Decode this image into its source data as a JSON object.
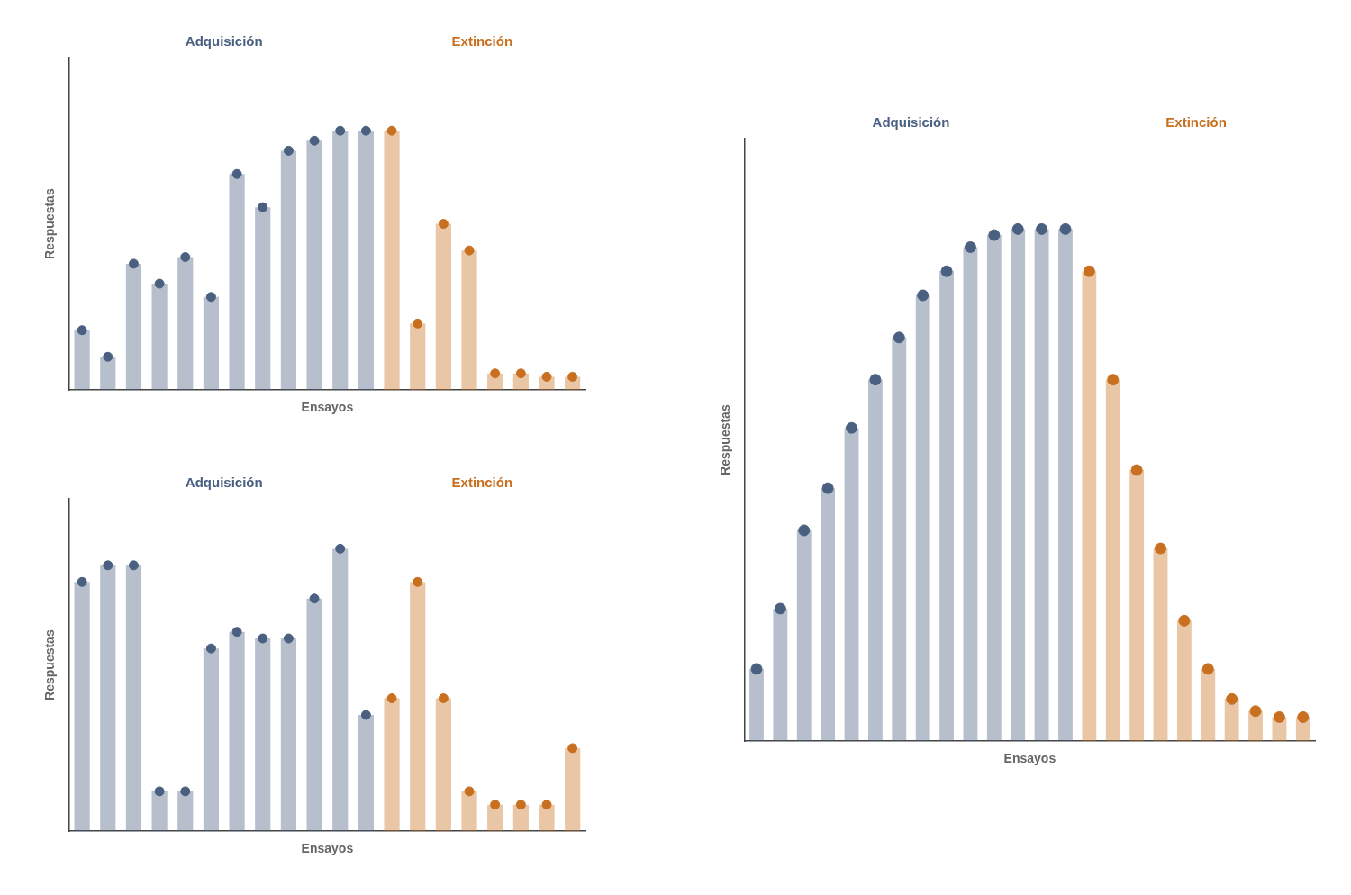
{
  "chart_data": [
    {
      "type": "bar",
      "xlabel": "Ensayos",
      "ylabel": "Respuestas",
      "categories": [
        null,
        null,
        null,
        null,
        null,
        null,
        null,
        null,
        null,
        null,
        null,
        null,
        null,
        null,
        null,
        null,
        null,
        null,
        null,
        null
      ],
      "series": [
        {
          "name": "Adquisición",
          "color": "#4a6080",
          "marker": "circle",
          "values": [
            0.18,
            0.1,
            0.38,
            0.32,
            0.4,
            0.28,
            0.65,
            0.55,
            0.72,
            0.75,
            0.78,
            0.78,
            null,
            null,
            null,
            null,
            null,
            null,
            null,
            null
          ]
        },
        {
          "name": "Extinción",
          "color": "#c87020",
          "marker": "circle",
          "values": [
            null,
            null,
            null,
            null,
            null,
            null,
            null,
            null,
            null,
            null,
            null,
            null,
            0.78,
            0.2,
            0.5,
            0.42,
            0.05,
            0.05,
            0.04,
            0.04
          ]
        }
      ],
      "ylim": [
        0,
        1
      ],
      "grid": false,
      "tick_labels": false
    },
    {
      "type": "bar",
      "xlabel": "Ensayos",
      "ylabel": "Respuestas",
      "categories": [
        null,
        null,
        null,
        null,
        null,
        null,
        null,
        null,
        null,
        null,
        null,
        null,
        null,
        null,
        null,
        null,
        null,
        null,
        null,
        null
      ],
      "series": [
        {
          "name": "Adquisición",
          "color": "#4a6080",
          "marker": "circle",
          "values": [
            0.75,
            0.8,
            0.8,
            0.12,
            0.12,
            0.55,
            0.6,
            0.58,
            0.58,
            0.7,
            0.85,
            0.35,
            null,
            null,
            null,
            null,
            null,
            null,
            null,
            null
          ]
        },
        {
          "name": "Extinción",
          "color": "#c87020",
          "marker": "circle",
          "values": [
            null,
            null,
            null,
            null,
            null,
            null,
            null,
            null,
            null,
            null,
            null,
            null,
            0.4,
            0.75,
            0.4,
            0.12,
            0.08,
            0.08,
            0.08,
            0.25
          ]
        }
      ],
      "ylim": [
        0,
        1
      ],
      "grid": false,
      "tick_labels": false
    },
    {
      "type": "bar",
      "xlabel": "Ensayos",
      "ylabel": "Respuestas",
      "categories": [
        null,
        null,
        null,
        null,
        null,
        null,
        null,
        null,
        null,
        null,
        null,
        null,
        null,
        null,
        null,
        null,
        null,
        null,
        null,
        null,
        null,
        null,
        null,
        null
      ],
      "series": [
        {
          "name": "Adquisición",
          "color": "#4a6080",
          "marker": "circle",
          "values": [
            0.12,
            0.22,
            0.35,
            0.42,
            0.52,
            0.6,
            0.67,
            0.74,
            0.78,
            0.82,
            0.84,
            0.85,
            0.85,
            0.85,
            null,
            null,
            null,
            null,
            null,
            null,
            null,
            null,
            null,
            null
          ]
        },
        {
          "name": "Extinción",
          "color": "#c87020",
          "marker": "circle",
          "values": [
            null,
            null,
            null,
            null,
            null,
            null,
            null,
            null,
            null,
            null,
            null,
            null,
            null,
            null,
            0.78,
            0.6,
            0.45,
            0.32,
            0.2,
            0.12,
            0.07,
            0.05,
            0.04,
            0.04
          ]
        }
      ],
      "ylim": [
        0,
        1
      ],
      "grid": false,
      "tick_labels": false
    }
  ]
}
